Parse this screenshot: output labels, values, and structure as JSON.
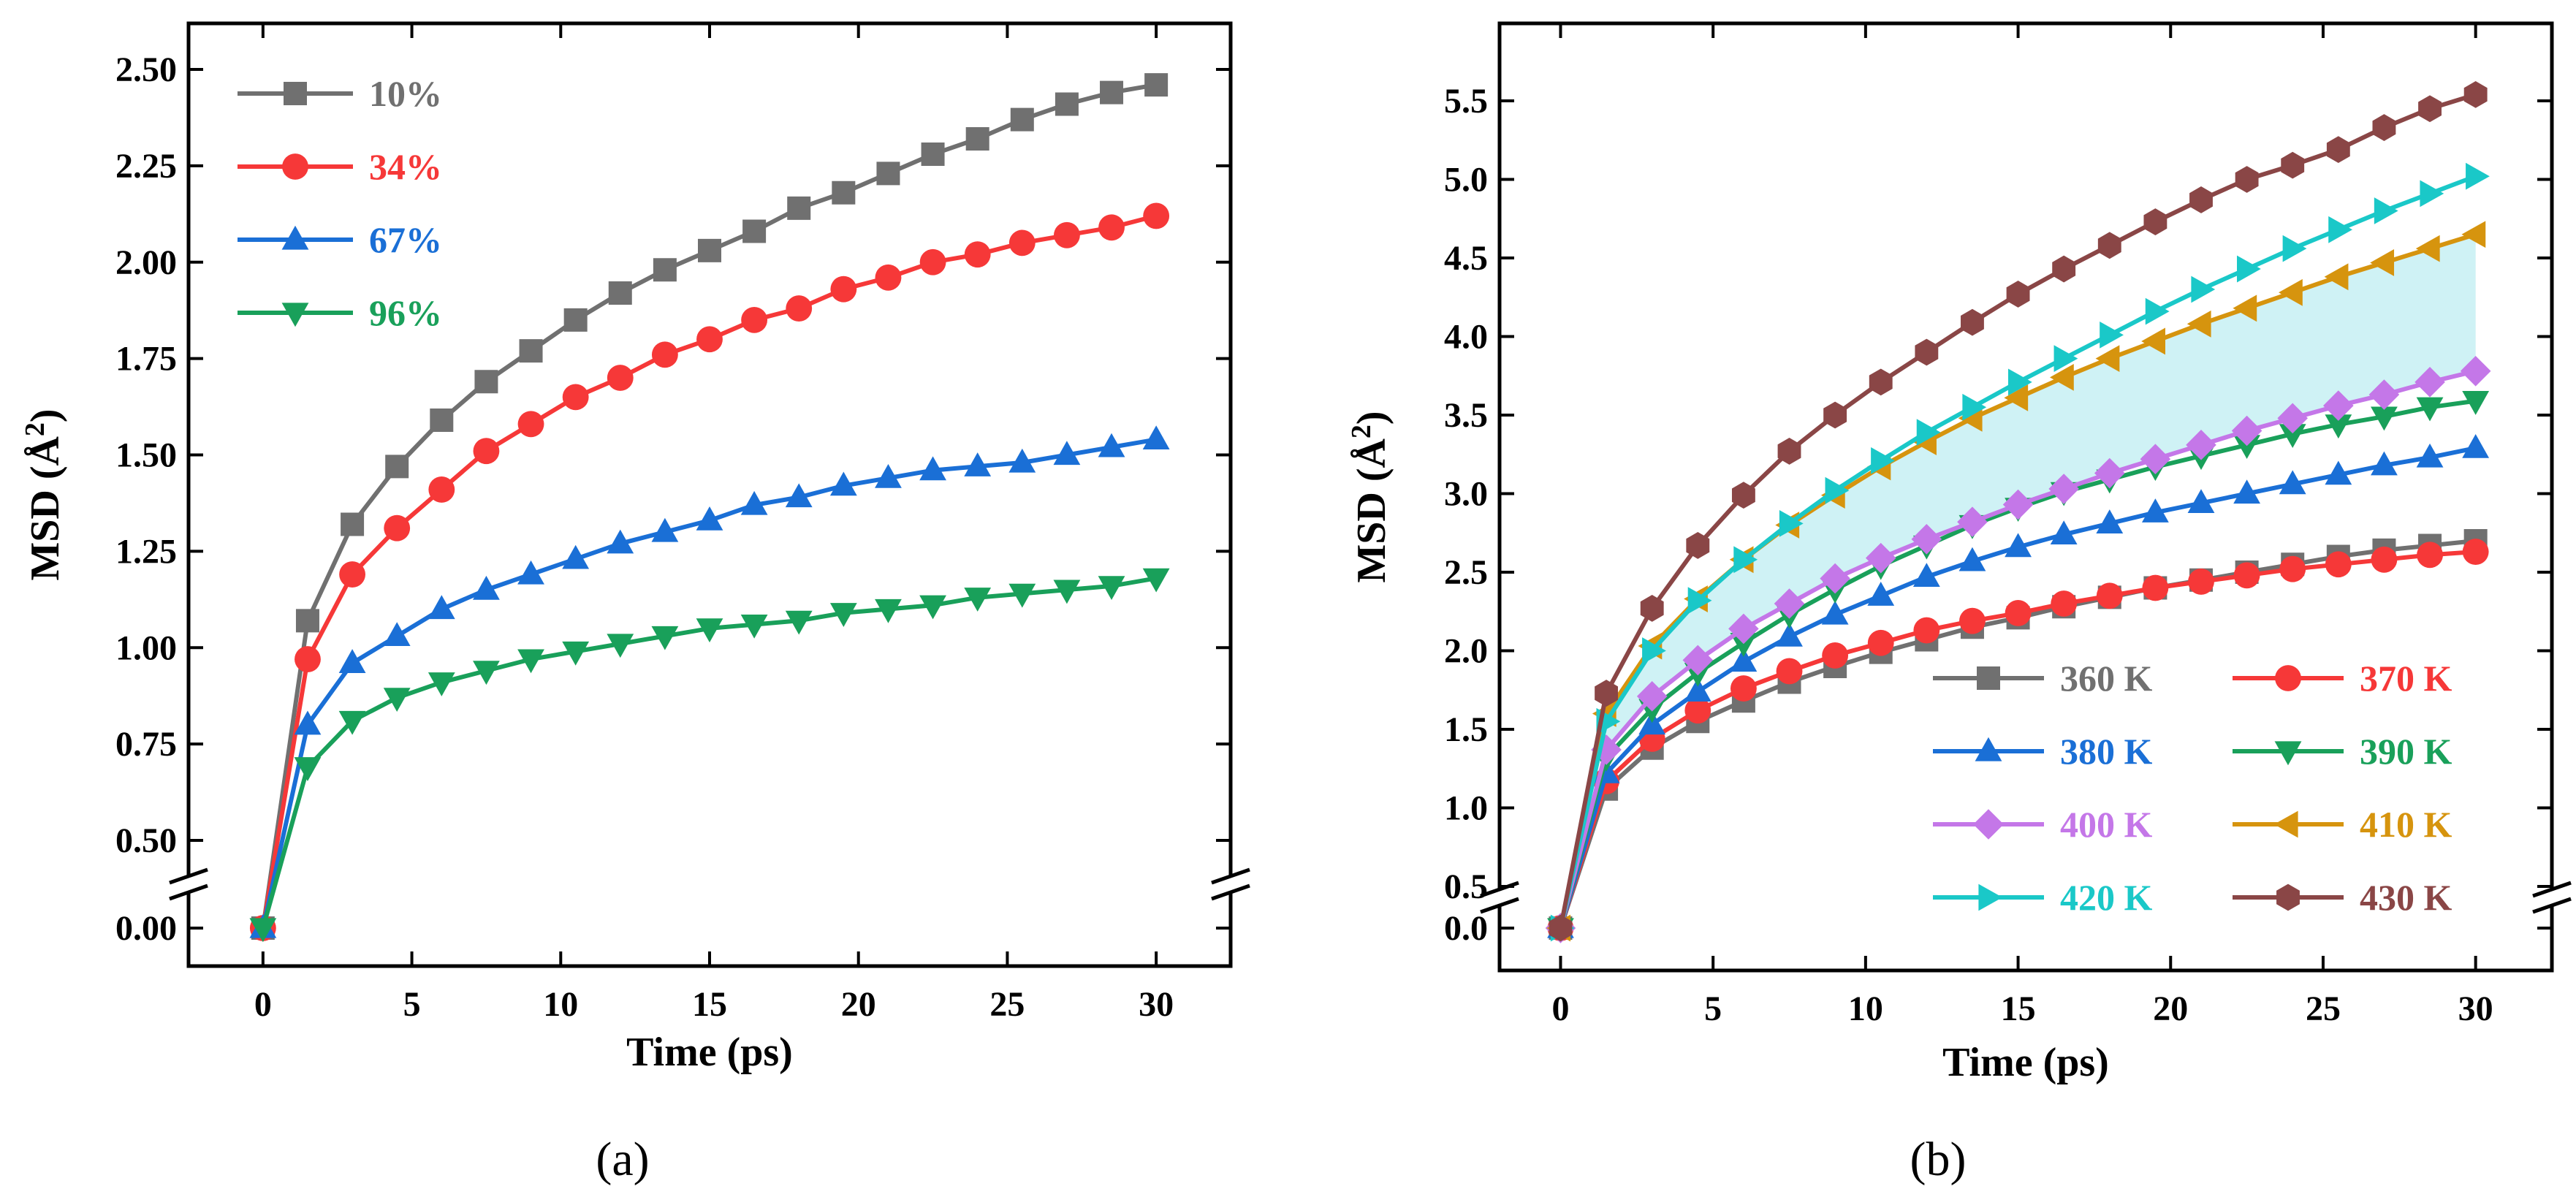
{
  "chart_data": [
    {
      "type": "line",
      "panel": "a",
      "caption": "(a)",
      "xlabel": "Time (ps)",
      "ylabel_prefix": "MSD (Å",
      "ylabel_sup": "2",
      "ylabel_suffix": ")",
      "xlim": [
        -2.5,
        32.5
      ],
      "xticks": [
        0,
        5,
        10,
        15,
        20,
        25,
        30
      ],
      "yticks": [
        0.0,
        0.5,
        0.75,
        1.0,
        1.25,
        1.5,
        1.75,
        2.0,
        2.25,
        2.5
      ],
      "ytick_labels": [
        "0.00",
        "0.50",
        "0.75",
        "1.00",
        "1.25",
        "1.50",
        "1.75",
        "2.00",
        "2.25",
        "2.50"
      ],
      "y_axis_break": [
        0.0,
        0.5
      ],
      "legend_position": "top-left",
      "x": [
        0,
        1.5,
        3,
        4.5,
        6,
        7.5,
        9,
        10.5,
        12,
        13.5,
        15,
        16.5,
        18,
        19.5,
        21,
        22.5,
        24,
        25.5,
        27,
        28.5,
        30
      ],
      "series": [
        {
          "name": "10%",
          "color": "#707070",
          "marker": "square",
          "values": [
            0.0,
            1.07,
            1.32,
            1.47,
            1.59,
            1.69,
            1.77,
            1.85,
            1.92,
            1.98,
            2.03,
            2.08,
            2.14,
            2.18,
            2.23,
            2.28,
            2.32,
            2.37,
            2.41,
            2.44,
            2.46
          ]
        },
        {
          "name": "34%",
          "color": "#f63838",
          "marker": "circle",
          "values": [
            0.0,
            0.97,
            1.19,
            1.31,
            1.41,
            1.51,
            1.58,
            1.65,
            1.7,
            1.76,
            1.8,
            1.85,
            1.88,
            1.93,
            1.96,
            2.0,
            2.02,
            2.05,
            2.07,
            2.09,
            2.12
          ]
        },
        {
          "name": "67%",
          "color": "#1a6fd6",
          "marker": "triangle-up",
          "values": [
            0.0,
            0.8,
            0.96,
            1.03,
            1.1,
            1.15,
            1.19,
            1.23,
            1.27,
            1.3,
            1.33,
            1.37,
            1.39,
            1.42,
            1.44,
            1.46,
            1.47,
            1.48,
            1.5,
            1.52,
            1.54
          ]
        },
        {
          "name": "96%",
          "color": "#19a05a",
          "marker": "triangle-down",
          "values": [
            0.0,
            0.69,
            0.81,
            0.87,
            0.91,
            0.94,
            0.97,
            0.99,
            1.01,
            1.03,
            1.05,
            1.06,
            1.07,
            1.09,
            1.1,
            1.11,
            1.13,
            1.14,
            1.15,
            1.16,
            1.18
          ]
        }
      ]
    },
    {
      "type": "line",
      "panel": "b",
      "caption": "(b)",
      "xlabel": "Time (ps)",
      "ylabel_prefix": "MSD (Å",
      "ylabel_sup": "2",
      "ylabel_suffix": ")",
      "xlim": [
        -2,
        32.5
      ],
      "xticks": [
        0,
        5,
        10,
        15,
        20,
        25,
        30
      ],
      "yticks": [
        0.0,
        0.5,
        1.0,
        1.5,
        2.0,
        2.5,
        3.0,
        3.5,
        4.0,
        4.5,
        5.0,
        5.5
      ],
      "ytick_labels": [
        "0.0",
        "0.5",
        "1.0",
        "1.5",
        "2.0",
        "2.5",
        "3.0",
        "3.5",
        "4.0",
        "4.5",
        "5.0",
        "5.5"
      ],
      "y_axis_break": [
        0.0,
        0.5
      ],
      "shaded_region_between": [
        "400 K",
        "410 K"
      ],
      "shade_color": "#bfeef2",
      "legend_position": "bottom-right",
      "x": [
        0,
        1.5,
        3,
        4.5,
        6,
        7.5,
        9,
        10.5,
        12,
        13.5,
        15,
        16.5,
        18,
        19.5,
        21,
        22.5,
        24,
        25.5,
        27,
        28.5,
        30
      ],
      "series": [
        {
          "name": "360 K",
          "color": "#707070",
          "marker": "square",
          "values": [
            0.0,
            1.12,
            1.38,
            1.55,
            1.68,
            1.8,
            1.9,
            1.99,
            2.07,
            2.15,
            2.21,
            2.28,
            2.34,
            2.4,
            2.45,
            2.5,
            2.55,
            2.6,
            2.64,
            2.67,
            2.7
          ]
        },
        {
          "name": "370 K",
          "color": "#f63838",
          "marker": "circle",
          "values": [
            0.0,
            1.17,
            1.44,
            1.62,
            1.76,
            1.87,
            1.97,
            2.05,
            2.13,
            2.19,
            2.24,
            2.3,
            2.35,
            2.4,
            2.44,
            2.48,
            2.52,
            2.55,
            2.58,
            2.61,
            2.63
          ]
        },
        {
          "name": "380 K",
          "color": "#1a6fd6",
          "marker": "triangle-up",
          "values": [
            0.0,
            1.22,
            1.53,
            1.74,
            1.93,
            2.09,
            2.23,
            2.35,
            2.47,
            2.57,
            2.66,
            2.74,
            2.81,
            2.88,
            2.94,
            3.0,
            3.06,
            3.12,
            3.18,
            3.23,
            3.29
          ]
        },
        {
          "name": "390 K",
          "color": "#19a05a",
          "marker": "triangle-down",
          "values": [
            0.0,
            1.32,
            1.63,
            1.86,
            2.05,
            2.23,
            2.39,
            2.54,
            2.67,
            2.8,
            2.91,
            3.01,
            3.09,
            3.17,
            3.24,
            3.31,
            3.38,
            3.44,
            3.49,
            3.55,
            3.59
          ]
        },
        {
          "name": "400 K",
          "color": "#c477e8",
          "marker": "diamond",
          "values": [
            0.0,
            1.37,
            1.71,
            1.94,
            2.14,
            2.3,
            2.46,
            2.59,
            2.71,
            2.82,
            2.93,
            3.03,
            3.13,
            3.22,
            3.31,
            3.4,
            3.48,
            3.56,
            3.63,
            3.71,
            3.78
          ]
        },
        {
          "name": "410 K",
          "color": "#d6940e",
          "marker": "triangle-left",
          "values": [
            0.0,
            1.6,
            2.03,
            2.33,
            2.58,
            2.8,
            2.99,
            3.17,
            3.33,
            3.48,
            3.61,
            3.74,
            3.86,
            3.97,
            4.08,
            4.18,
            4.28,
            4.38,
            4.47,
            4.56,
            4.65
          ]
        },
        {
          "name": "420 K",
          "color": "#1ac8c8",
          "marker": "triangle-right",
          "values": [
            0.0,
            1.55,
            2.0,
            2.32,
            2.58,
            2.81,
            3.02,
            3.21,
            3.39,
            3.55,
            3.71,
            3.86,
            4.01,
            4.16,
            4.3,
            4.43,
            4.56,
            4.68,
            4.8,
            4.91,
            5.02
          ]
        },
        {
          "name": "430 K",
          "color": "#8a4646",
          "marker": "hexagon",
          "values": [
            0.0,
            1.73,
            2.27,
            2.67,
            2.99,
            3.27,
            3.5,
            3.71,
            3.9,
            4.09,
            4.27,
            4.43,
            4.58,
            4.73,
            4.87,
            5.0,
            5.09,
            5.19,
            5.33,
            5.45,
            5.54
          ]
        }
      ]
    }
  ]
}
